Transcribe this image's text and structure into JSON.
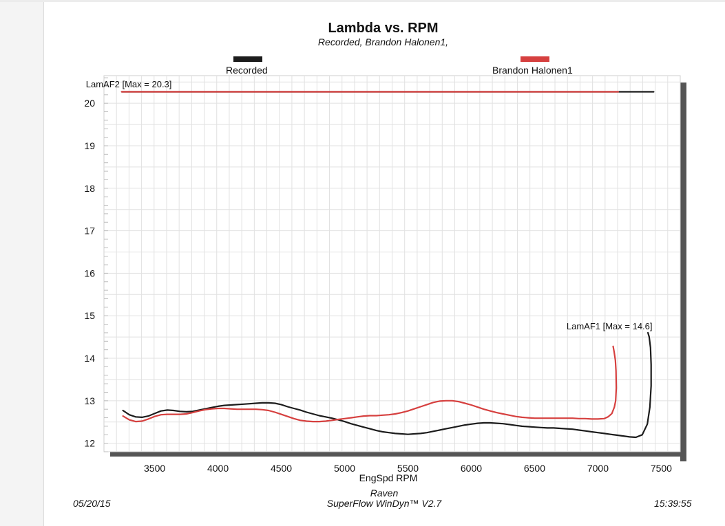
{
  "chart_data": {
    "type": "line",
    "title": "Lambda vs. RPM",
    "subtitle": "Recorded, Brandon Halonen1,",
    "xlabel": "EngSpd  RPM",
    "ylabel": "",
    "xlim": [
      3100,
      7650
    ],
    "ylim": [
      11.8,
      20.65
    ],
    "x_ticks": [
      3500,
      4000,
      4500,
      5000,
      5500,
      6000,
      6500,
      7000,
      7500
    ],
    "y_ticks": [
      12,
      13,
      14,
      15,
      16,
      17,
      18,
      19,
      20
    ],
    "grid": true,
    "legend": {
      "placement": "top",
      "entries": [
        {
          "name": "Recorded",
          "color": "#1c1c1c"
        },
        {
          "name": "Brandon Halonen1",
          "color": "#d6403f"
        }
      ]
    },
    "annotations": [
      {
        "text": "LamAF2 [Max = 20.3]",
        "x": 3240,
        "y": 20.31
      },
      {
        "text": "LamAF1 [Max = 14.6]",
        "x": 7430,
        "y": 14.7
      }
    ],
    "series": [
      {
        "name": "Recorded LamAF1",
        "color": "#1c1c1c",
        "points": [
          [
            3250,
            12.77
          ],
          [
            3300,
            12.67
          ],
          [
            3350,
            12.62
          ],
          [
            3400,
            12.61
          ],
          [
            3450,
            12.64
          ],
          [
            3500,
            12.7
          ],
          [
            3550,
            12.76
          ],
          [
            3600,
            12.78
          ],
          [
            3650,
            12.77
          ],
          [
            3700,
            12.75
          ],
          [
            3750,
            12.74
          ],
          [
            3800,
            12.75
          ],
          [
            3850,
            12.78
          ],
          [
            3900,
            12.81
          ],
          [
            3950,
            12.84
          ],
          [
            4000,
            12.87
          ],
          [
            4050,
            12.89
          ],
          [
            4100,
            12.9
          ],
          [
            4150,
            12.91
          ],
          [
            4200,
            12.92
          ],
          [
            4250,
            12.93
          ],
          [
            4300,
            12.94
          ],
          [
            4350,
            12.95
          ],
          [
            4400,
            12.95
          ],
          [
            4450,
            12.94
          ],
          [
            4500,
            12.91
          ],
          [
            4550,
            12.86
          ],
          [
            4600,
            12.82
          ],
          [
            4650,
            12.78
          ],
          [
            4700,
            12.73
          ],
          [
            4750,
            12.69
          ],
          [
            4800,
            12.65
          ],
          [
            4850,
            12.62
          ],
          [
            4900,
            12.59
          ],
          [
            4950,
            12.55
          ],
          [
            5000,
            12.51
          ],
          [
            5050,
            12.46
          ],
          [
            5100,
            12.42
          ],
          [
            5150,
            12.38
          ],
          [
            5200,
            12.34
          ],
          [
            5250,
            12.3
          ],
          [
            5300,
            12.27
          ],
          [
            5350,
            12.25
          ],
          [
            5400,
            12.23
          ],
          [
            5450,
            12.22
          ],
          [
            5500,
            12.21
          ],
          [
            5550,
            12.22
          ],
          [
            5600,
            12.23
          ],
          [
            5650,
            12.25
          ],
          [
            5700,
            12.28
          ],
          [
            5750,
            12.31
          ],
          [
            5800,
            12.34
          ],
          [
            5850,
            12.37
          ],
          [
            5900,
            12.4
          ],
          [
            5950,
            12.43
          ],
          [
            6000,
            12.45
          ],
          [
            6050,
            12.47
          ],
          [
            6100,
            12.48
          ],
          [
            6150,
            12.48
          ],
          [
            6200,
            12.47
          ],
          [
            6250,
            12.46
          ],
          [
            6300,
            12.44
          ],
          [
            6350,
            12.42
          ],
          [
            6400,
            12.4
          ],
          [
            6450,
            12.39
          ],
          [
            6500,
            12.38
          ],
          [
            6550,
            12.37
          ],
          [
            6600,
            12.36
          ],
          [
            6650,
            12.36
          ],
          [
            6700,
            12.35
          ],
          [
            6750,
            12.34
          ],
          [
            6800,
            12.33
          ],
          [
            6850,
            12.31
          ],
          [
            6900,
            12.29
          ],
          [
            6950,
            12.27
          ],
          [
            7000,
            12.25
          ],
          [
            7050,
            12.23
          ],
          [
            7100,
            12.21
          ],
          [
            7150,
            12.19
          ],
          [
            7200,
            12.17
          ],
          [
            7250,
            12.15
          ],
          [
            7300,
            12.14
          ],
          [
            7350,
            12.2
          ],
          [
            7390,
            12.45
          ],
          [
            7410,
            12.85
          ],
          [
            7420,
            13.35
          ],
          [
            7420,
            13.85
          ],
          [
            7415,
            14.25
          ],
          [
            7405,
            14.5
          ],
          [
            7395,
            14.6
          ]
        ]
      },
      {
        "name": "Brandon Halonen1 LamAF1",
        "color": "#d6403f",
        "points": [
          [
            3250,
            12.64
          ],
          [
            3300,
            12.55
          ],
          [
            3350,
            12.51
          ],
          [
            3400,
            12.52
          ],
          [
            3450,
            12.57
          ],
          [
            3500,
            12.63
          ],
          [
            3550,
            12.67
          ],
          [
            3600,
            12.68
          ],
          [
            3650,
            12.68
          ],
          [
            3700,
            12.68
          ],
          [
            3750,
            12.69
          ],
          [
            3800,
            12.72
          ],
          [
            3850,
            12.76
          ],
          [
            3900,
            12.79
          ],
          [
            3950,
            12.81
          ],
          [
            4000,
            12.82
          ],
          [
            4050,
            12.82
          ],
          [
            4100,
            12.81
          ],
          [
            4150,
            12.8
          ],
          [
            4200,
            12.8
          ],
          [
            4250,
            12.8
          ],
          [
            4300,
            12.8
          ],
          [
            4350,
            12.79
          ],
          [
            4400,
            12.77
          ],
          [
            4450,
            12.73
          ],
          [
            4500,
            12.68
          ],
          [
            4550,
            12.63
          ],
          [
            4600,
            12.58
          ],
          [
            4650,
            12.54
          ],
          [
            4700,
            12.52
          ],
          [
            4750,
            12.51
          ],
          [
            4800,
            12.51
          ],
          [
            4850,
            12.52
          ],
          [
            4900,
            12.54
          ],
          [
            4950,
            12.56
          ],
          [
            5000,
            12.58
          ],
          [
            5050,
            12.6
          ],
          [
            5100,
            12.62
          ],
          [
            5150,
            12.64
          ],
          [
            5200,
            12.65
          ],
          [
            5250,
            12.65
          ],
          [
            5300,
            12.66
          ],
          [
            5350,
            12.67
          ],
          [
            5400,
            12.69
          ],
          [
            5450,
            12.72
          ],
          [
            5500,
            12.76
          ],
          [
            5550,
            12.81
          ],
          [
            5600,
            12.86
          ],
          [
            5650,
            12.91
          ],
          [
            5700,
            12.96
          ],
          [
            5750,
            12.99
          ],
          [
            5800,
            13.0
          ],
          [
            5850,
            13.0
          ],
          [
            5900,
            12.98
          ],
          [
            5950,
            12.94
          ],
          [
            6000,
            12.9
          ],
          [
            6050,
            12.85
          ],
          [
            6100,
            12.8
          ],
          [
            6150,
            12.76
          ],
          [
            6200,
            12.72
          ],
          [
            6250,
            12.69
          ],
          [
            6300,
            12.66
          ],
          [
            6350,
            12.63
          ],
          [
            6400,
            12.61
          ],
          [
            6450,
            12.6
          ],
          [
            6500,
            12.59
          ],
          [
            6550,
            12.59
          ],
          [
            6600,
            12.59
          ],
          [
            6650,
            12.59
          ],
          [
            6700,
            12.59
          ],
          [
            6750,
            12.59
          ],
          [
            6800,
            12.59
          ],
          [
            6850,
            12.58
          ],
          [
            6900,
            12.58
          ],
          [
            6950,
            12.57
          ],
          [
            7000,
            12.57
          ],
          [
            7050,
            12.58
          ],
          [
            7080,
            12.62
          ],
          [
            7110,
            12.7
          ],
          [
            7130,
            12.85
          ],
          [
            7140,
            13.0
          ],
          [
            7145,
            13.3
          ],
          [
            7143,
            13.7
          ],
          [
            7138,
            13.95
          ],
          [
            7128,
            14.15
          ],
          [
            7120,
            14.28
          ]
        ]
      },
      {
        "name": "Recorded LamAF2",
        "color": "#1c1c1c",
        "points": [
          [
            3240,
            20.27
          ],
          [
            7440,
            20.27
          ]
        ]
      },
      {
        "name": "Brandon Halonen1 LamAF2",
        "color": "#d6403f",
        "points": [
          [
            3240,
            20.27
          ],
          [
            7160,
            20.27
          ]
        ]
      }
    ]
  },
  "footer": {
    "date": "05/20/15",
    "product_line1": "Raven",
    "product_line2": "SuperFlow WinDyn™ V2.7",
    "time": "15:39:55"
  }
}
